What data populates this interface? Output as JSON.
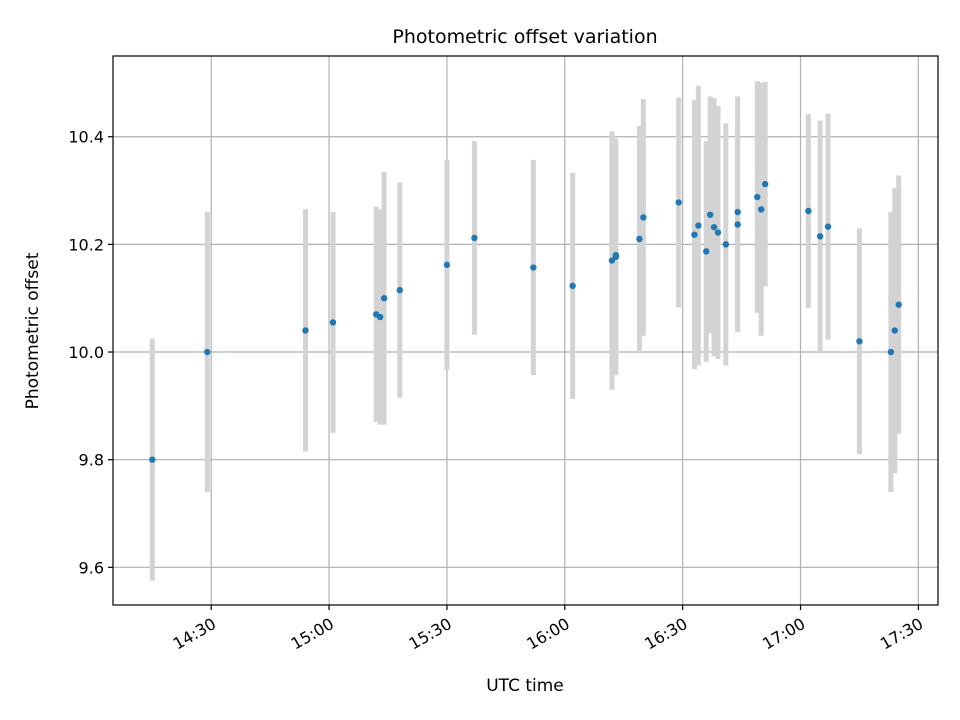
{
  "chart_data": {
    "type": "scatter",
    "title": "Photometric offset variation",
    "xlabel": "UTC time",
    "ylabel": "Photometric offset",
    "x_ticks": [
      "14:30",
      "15:00",
      "15:30",
      "16:00",
      "16:30",
      "17:00",
      "17:30"
    ],
    "y_ticks": [
      "9.6",
      "9.8",
      "10.0",
      "10.2",
      "10.4"
    ],
    "xlim": [
      "14:05",
      "17:35"
    ],
    "ylim": [
      9.53,
      10.55
    ],
    "grid": true,
    "colors": {
      "marker": "#1f77b4",
      "errorbar": "#d3d3d3",
      "grid": "#b0b0b0"
    },
    "points": [
      {
        "time": "14:15",
        "value": 9.8,
        "err": 0.225
      },
      {
        "time": "14:29",
        "value": 10.0,
        "err": 0.26
      },
      {
        "time": "14:54",
        "value": 10.04,
        "err": 0.225
      },
      {
        "time": "15:01",
        "value": 10.055,
        "err": 0.205
      },
      {
        "time": "15:12",
        "value": 10.07,
        "err": 0.2
      },
      {
        "time": "15:13",
        "value": 10.065,
        "err": 0.2
      },
      {
        "time": "15:14",
        "value": 10.1,
        "err": 0.235
      },
      {
        "time": "15:18",
        "value": 10.115,
        "err": 0.2
      },
      {
        "time": "15:30",
        "value": 10.162,
        "err": 0.195
      },
      {
        "time": "15:37",
        "value": 10.212,
        "err": 0.18
      },
      {
        "time": "15:52",
        "value": 10.157,
        "err": 0.2
      },
      {
        "time": "16:02",
        "value": 10.123,
        "err": 0.21
      },
      {
        "time": "16:12",
        "value": 10.17,
        "err": 0.24
      },
      {
        "time": "16:13",
        "value": 10.177,
        "err": 0.22
      },
      {
        "time": "16:13",
        "value": 10.18,
        "err": 0.205
      },
      {
        "time": "16:19",
        "value": 10.21,
        "err": 0.21
      },
      {
        "time": "16:20",
        "value": 10.25,
        "err": 0.22
      },
      {
        "time": "16:29",
        "value": 10.278,
        "err": 0.195
      },
      {
        "time": "16:33",
        "value": 10.218,
        "err": 0.25
      },
      {
        "time": "16:34",
        "value": 10.235,
        "err": 0.26
      },
      {
        "time": "16:36",
        "value": 10.187,
        "err": 0.205
      },
      {
        "time": "16:37",
        "value": 10.255,
        "err": 0.22
      },
      {
        "time": "16:38",
        "value": 10.232,
        "err": 0.24
      },
      {
        "time": "16:39",
        "value": 10.222,
        "err": 0.235
      },
      {
        "time": "16:41",
        "value": 10.2,
        "err": 0.225
      },
      {
        "time": "16:44",
        "value": 10.26,
        "err": 0.215
      },
      {
        "time": "16:44",
        "value": 10.237,
        "err": 0.2
      },
      {
        "time": "16:49",
        "value": 10.288,
        "err": 0.215
      },
      {
        "time": "16:50",
        "value": 10.265,
        "err": 0.235
      },
      {
        "time": "16:51",
        "value": 10.312,
        "err": 0.19
      },
      {
        "time": "17:02",
        "value": 10.262,
        "err": 0.18
      },
      {
        "time": "17:05",
        "value": 10.215,
        "err": 0.215
      },
      {
        "time": "17:07",
        "value": 10.233,
        "err": 0.21
      },
      {
        "time": "17:15",
        "value": 10.02,
        "err": 0.21
      },
      {
        "time": "17:23",
        "value": 10.0,
        "err": 0.26
      },
      {
        "time": "17:24",
        "value": 10.04,
        "err": 0.265
      },
      {
        "time": "17:25",
        "value": 10.088,
        "err": 0.24
      }
    ]
  }
}
